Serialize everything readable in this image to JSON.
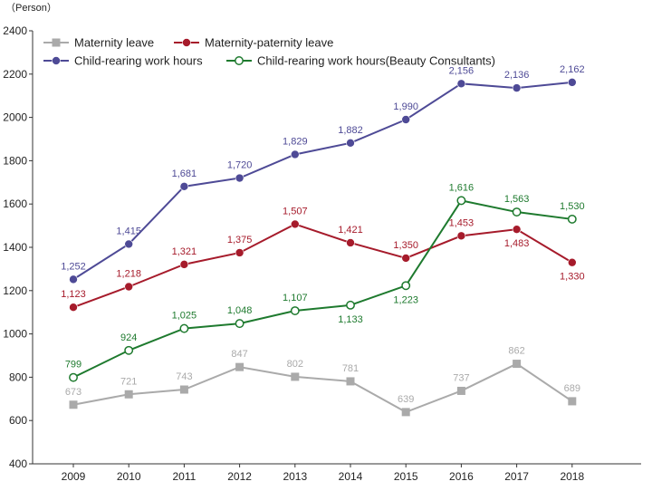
{
  "unit_label": "（Person）",
  "chart_data": {
    "type": "line",
    "categories": [
      "2009",
      "2010",
      "2011",
      "2012",
      "2013",
      "2014",
      "2015",
      "2016",
      "2017",
      "2018"
    ],
    "ylim": [
      400,
      2400
    ],
    "yticks": [
      400,
      600,
      800,
      1000,
      1200,
      1400,
      1600,
      1800,
      2000,
      2200,
      2400
    ],
    "grid": false,
    "legend_position": "top-left",
    "series": [
      {
        "name": "Maternity leave",
        "color": "#aaaaaa",
        "marker": "square",
        "values": [
          673,
          721,
          743,
          847,
          802,
          781,
          639,
          737,
          862,
          689
        ],
        "labels": [
          "673",
          "721",
          "743",
          "847",
          "802",
          "781",
          "639",
          "737",
          "862",
          "689"
        ],
        "label_pos": [
          "above",
          "above",
          "above",
          "above",
          "above",
          "above",
          "above",
          "above",
          "above",
          "above"
        ]
      },
      {
        "name": "Maternity-paternity leave",
        "color": "#a61b2b",
        "marker": "circle",
        "values": [
          1123,
          1218,
          1321,
          1375,
          1507,
          1421,
          1350,
          1453,
          1483,
          1330
        ],
        "labels": [
          "1,123",
          "1,218",
          "1,321",
          "1,375",
          "1,507",
          "1,421",
          "1,350",
          "1,453",
          "1,483",
          "1,330"
        ],
        "label_pos": [
          "above",
          "above",
          "above",
          "above",
          "above",
          "above",
          "above",
          "above",
          "below",
          "below"
        ]
      },
      {
        "name": "Child-rearing work hours",
        "color": "#4e4a96",
        "marker": "circle",
        "values": [
          1252,
          1415,
          1681,
          1720,
          1829,
          1882,
          1990,
          2156,
          2136,
          2162
        ],
        "labels": [
          "1,252",
          "1,415",
          "1,681",
          "1,720",
          "1,829",
          "1,882",
          "1,990",
          "2,156",
          "2,136",
          "2,162"
        ],
        "label_pos": [
          "above",
          "above",
          "above",
          "above",
          "above",
          "above",
          "above",
          "above",
          "above",
          "above"
        ]
      },
      {
        "name": "Child-rearing work hours(Beauty Consultants)",
        "color": "#1e7a2e",
        "marker": "open-circle",
        "values": [
          799,
          924,
          1025,
          1048,
          1107,
          1133,
          1223,
          1616,
          1563,
          1530
        ],
        "labels": [
          "799",
          "924",
          "1,025",
          "1,048",
          "1,107",
          "1,133",
          "1,223",
          "1,616",
          "1,563",
          "1,530"
        ],
        "label_pos": [
          "above",
          "above",
          "above",
          "above",
          "above",
          "below",
          "below",
          "above",
          "above",
          "above"
        ]
      }
    ]
  }
}
